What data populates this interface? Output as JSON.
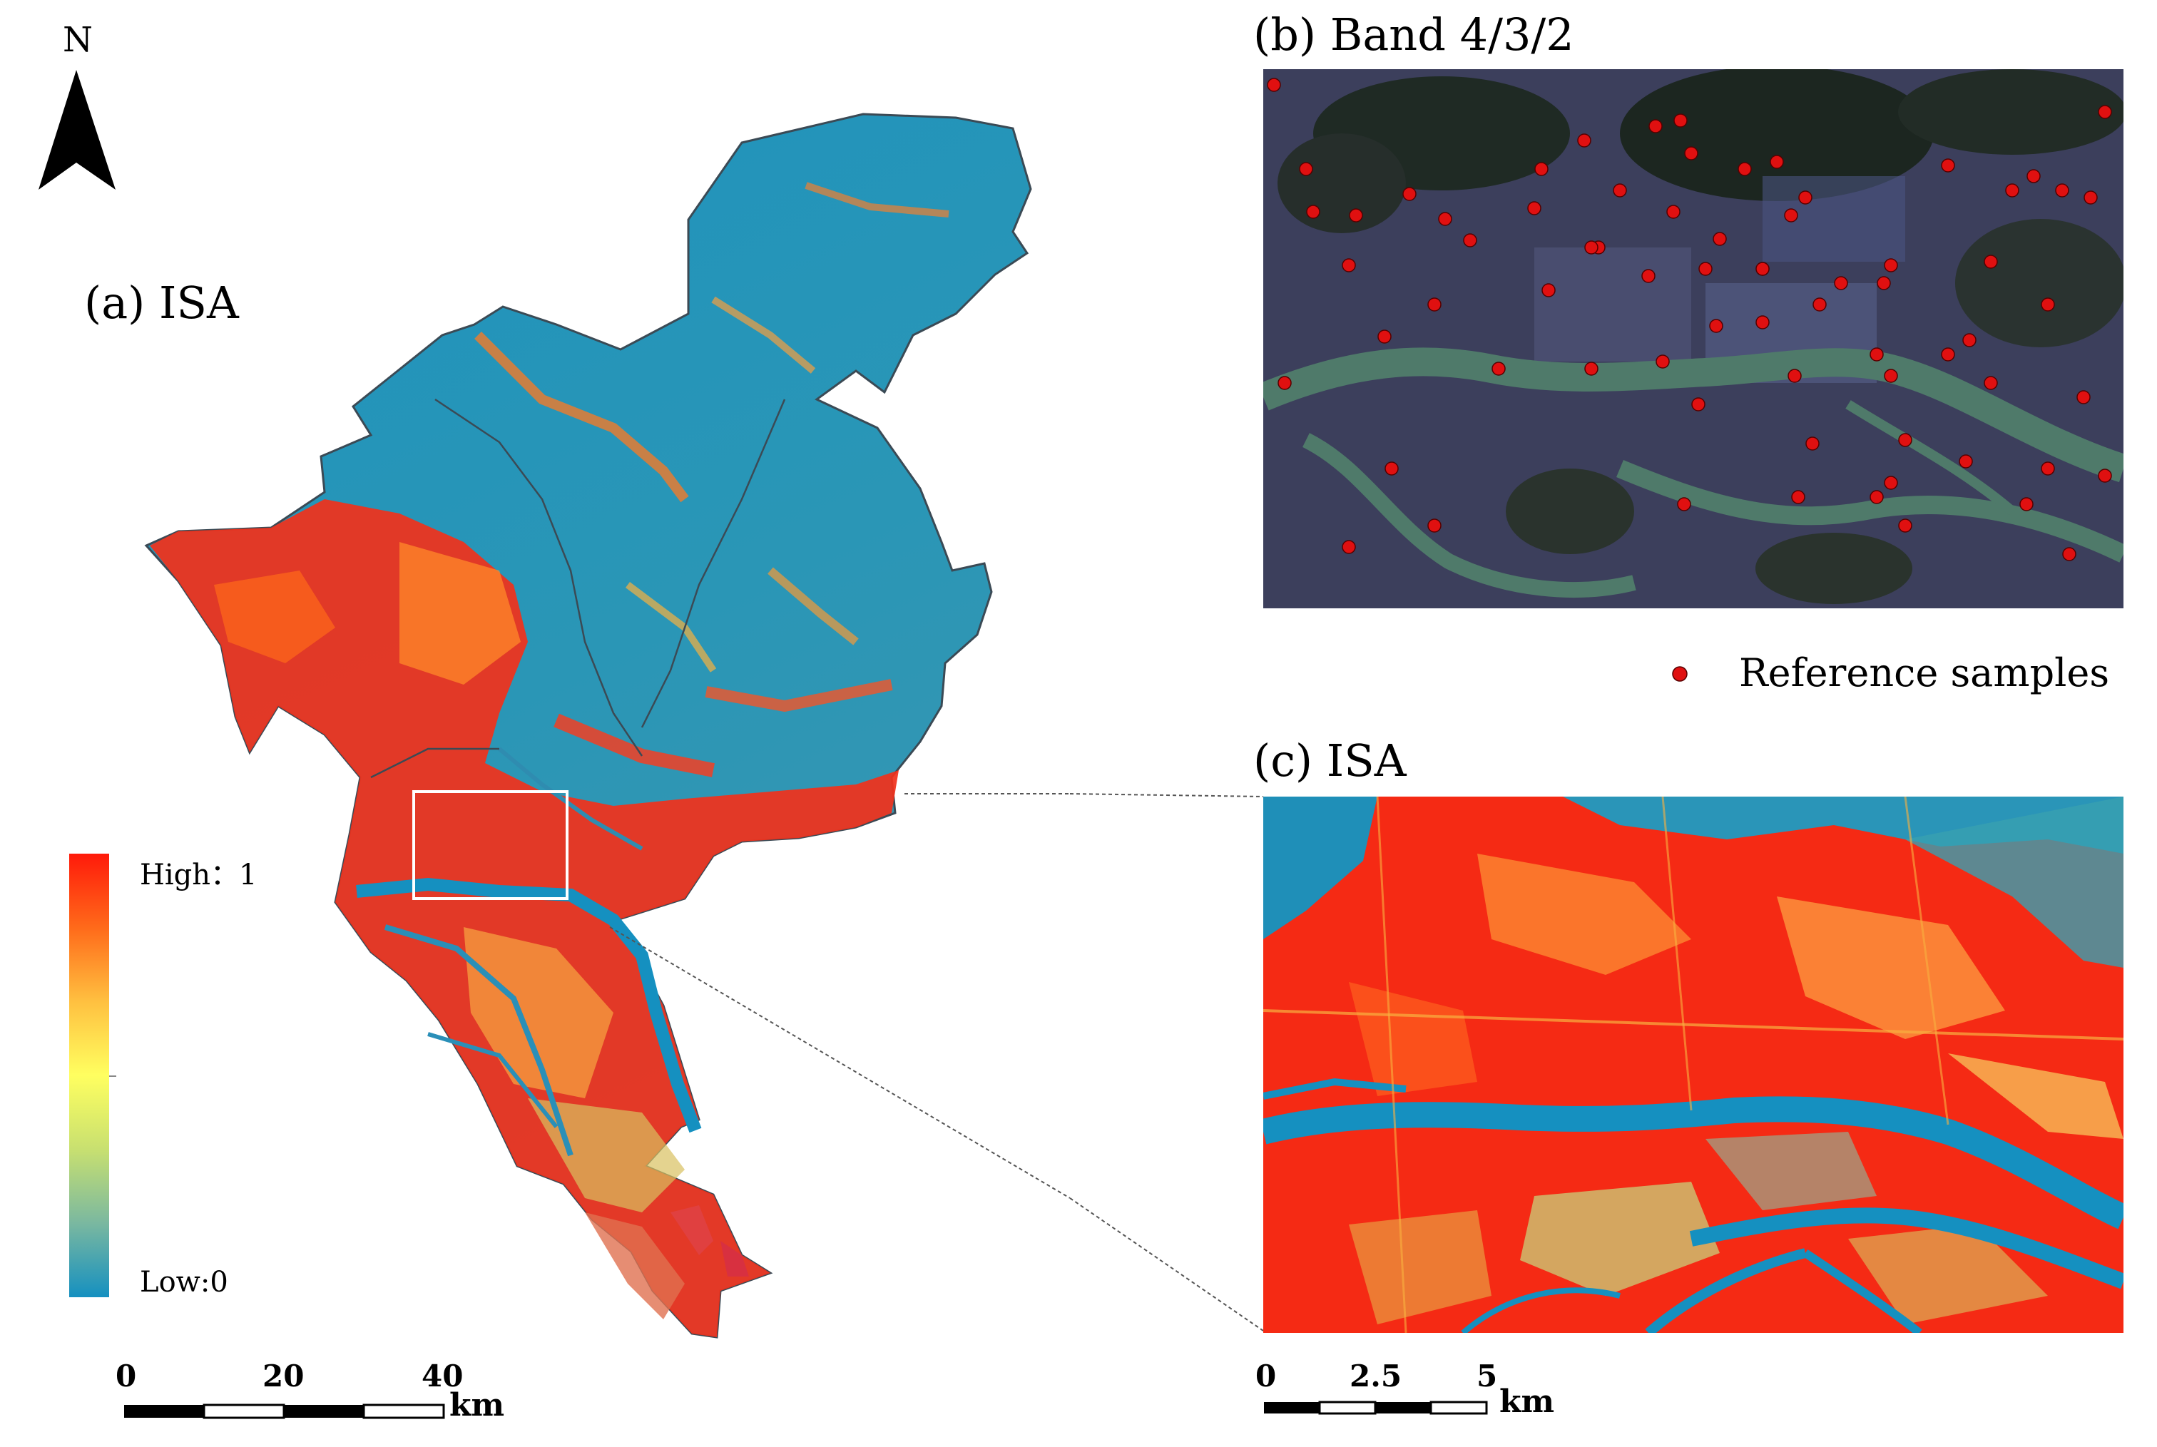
{
  "north_label": "N",
  "panel_a": {
    "title": "(a) ISA"
  },
  "panel_b": {
    "title": "(b) Band 4/3/2"
  },
  "panel_c": {
    "title": "(c) ISA"
  },
  "legend": {
    "high_label": "High：1",
    "low_label": "Low:0",
    "high_value": 1,
    "low_value": 0,
    "ramp_colors": [
      "#ff1a0a",
      "#ff6a1a",
      "#ffc040",
      "#ffff60",
      "#c8e070",
      "#7ab8a0",
      "#1590c0"
    ]
  },
  "samples_legend": {
    "label": "Reference samples",
    "marker_color": "#e01010"
  },
  "scalebar_a": {
    "ticks": [
      "0",
      "20",
      "40"
    ],
    "unit": "km"
  },
  "scalebar_c": {
    "ticks": [
      "0",
      "2.5",
      "5"
    ],
    "unit": "km"
  },
  "colors": {
    "water_low": "#1590c0",
    "high": "#ff1a0a",
    "river_rgb": "#4f7a6a",
    "land_rgb": "#3c3f5c"
  }
}
